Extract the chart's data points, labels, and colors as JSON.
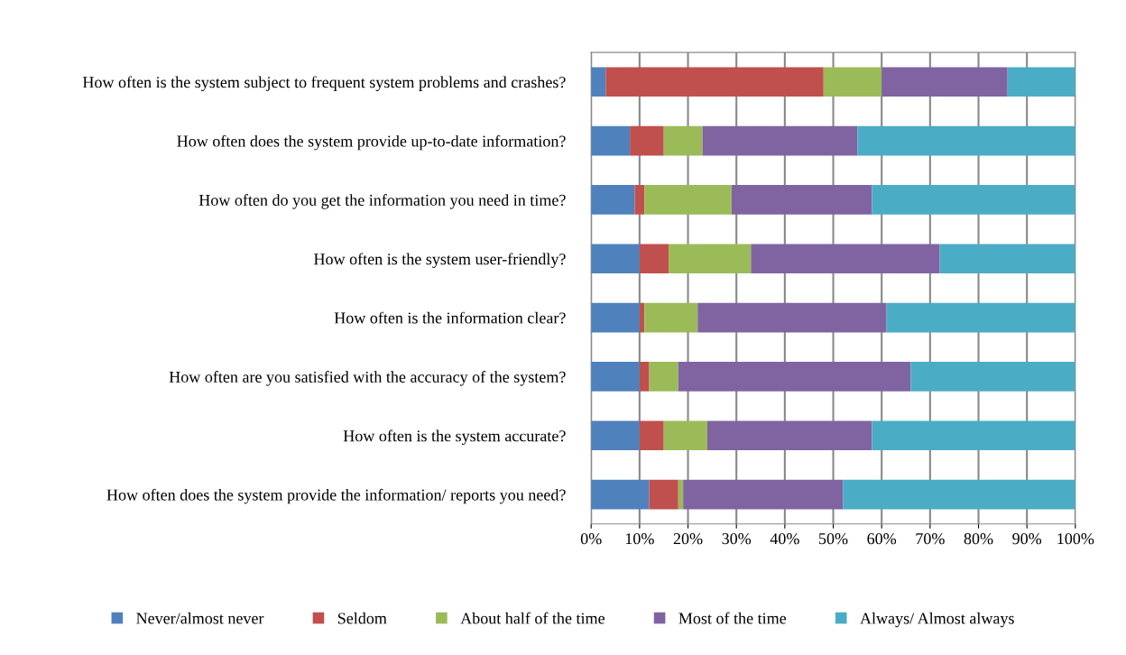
{
  "chart_data": {
    "type": "bar",
    "orientation": "horizontal",
    "stacked": true,
    "categories": [
      "How often is the system subject to frequent system problems and crashes?",
      "How often does the system provide up-to-date information?",
      "How often do you get the information you need in time?",
      "How often is the system user-friendly?",
      "How often is the information clear?",
      "How often are you satisfied with the accuracy of the system?",
      "How often is the system accurate?",
      "How often does the system provide the information/ reports you need?"
    ],
    "series": [
      {
        "name": "Never/almost never",
        "color": "#4f81bd",
        "values": [
          3,
          8,
          9,
          10,
          10,
          10,
          10,
          12
        ]
      },
      {
        "name": "Seldom",
        "color": "#c0504d",
        "values": [
          45,
          7,
          2,
          6,
          1,
          2,
          5,
          6
        ]
      },
      {
        "name": "About half of the time",
        "color": "#9bbb59",
        "values": [
          12,
          8,
          18,
          17,
          11,
          6,
          9,
          1
        ]
      },
      {
        "name": "Most of the time",
        "color": "#8064a2",
        "values": [
          26,
          32,
          29,
          39,
          39,
          48,
          34,
          33
        ]
      },
      {
        "name": "Always/ Almost always",
        "color": "#4bacc6",
        "values": [
          14,
          45,
          42,
          28,
          39,
          34,
          42,
          48
        ]
      }
    ],
    "xlim": [
      0,
      100
    ],
    "xticks": [
      {
        "value": 0,
        "label": "0%"
      },
      {
        "value": 10,
        "label": "10%"
      },
      {
        "value": 20,
        "label": "20%"
      },
      {
        "value": 30,
        "label": "30%"
      },
      {
        "value": 40,
        "label": "40%"
      },
      {
        "value": 50,
        "label": "50%"
      },
      {
        "value": 60,
        "label": "60%"
      },
      {
        "value": 70,
        "label": "70%"
      },
      {
        "value": 80,
        "label": "80%"
      },
      {
        "value": 90,
        "label": "90%"
      },
      {
        "value": 100,
        "label": "100%"
      }
    ],
    "grid": "x",
    "legend": "bottom"
  }
}
